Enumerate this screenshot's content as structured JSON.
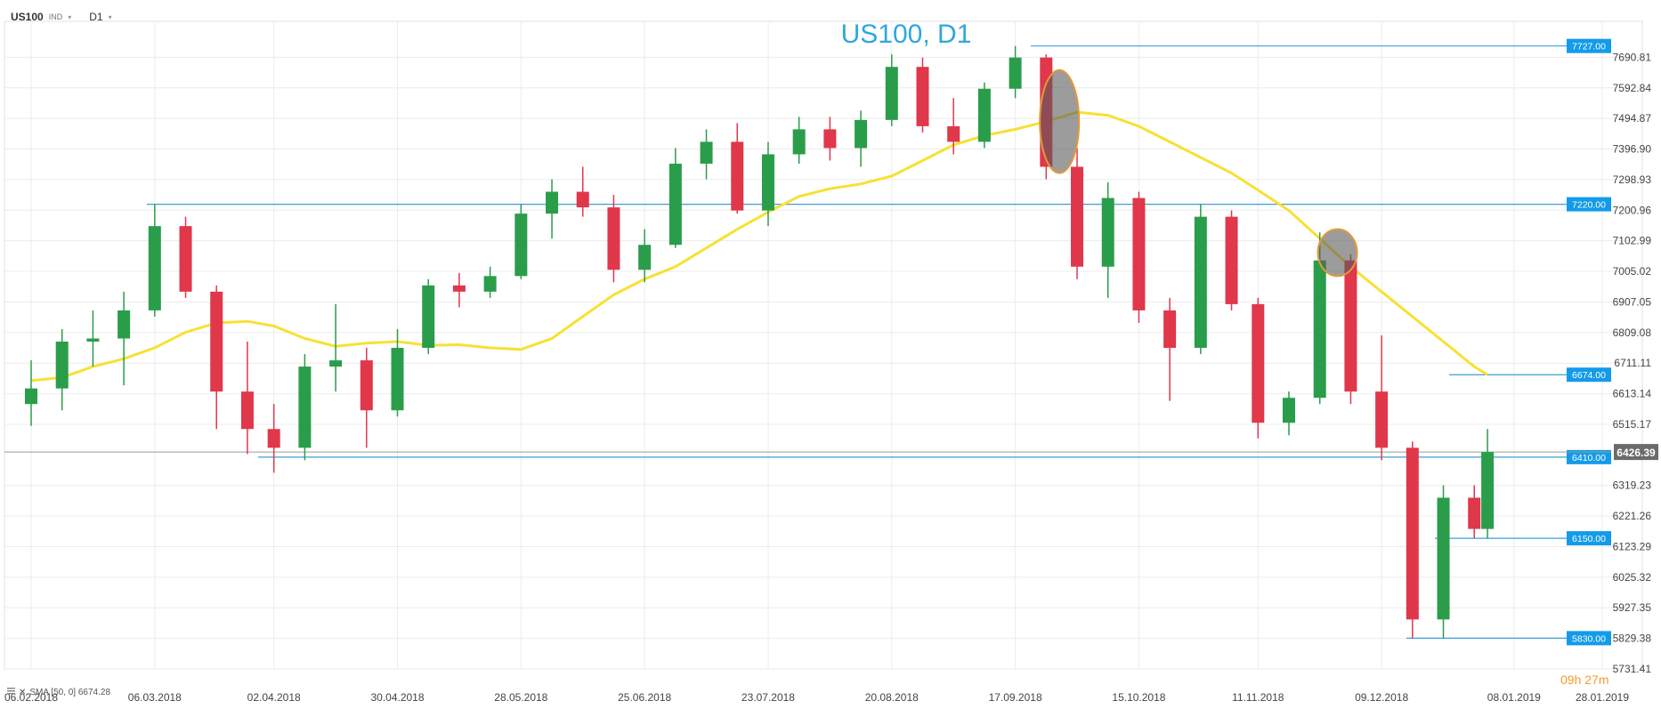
{
  "header": {
    "symbol": "US100",
    "symbol_type": "IND",
    "timeframe": "D1",
    "caret": "▾"
  },
  "indicator": {
    "label": "SMA [50, 0] 6674.28"
  },
  "countdown": {
    "hours": "09",
    "h": "h",
    "minutes": "27",
    "m": "m"
  },
  "colors": {
    "up": "#2a9d4a",
    "down": "#e0374b",
    "sma": "#f7e133",
    "hline": "#3c9dd9",
    "label_bg": "#139bea",
    "title": "#2ea7e0",
    "price_tag": "#6b6b6b",
    "grid": "#ececec"
  },
  "chart_data": {
    "type": "candlestick",
    "title": "US100, D1",
    "price_axis": {
      "ticks": [
        "7690.81",
        "7592.84",
        "7494.87",
        "7396.90",
        "7298.93",
        "7200.96",
        "7102.99",
        "7005.02",
        "6907.05",
        "6809.08",
        "6711.11",
        "6613.14",
        "6515.17",
        "6319.23",
        "6221.26",
        "6123.29",
        "6025.32",
        "5927.35",
        "5829.38",
        "5731.41"
      ],
      "ylim": [
        5731.41,
        7788.78
      ]
    },
    "date_axis": {
      "ticks": [
        "06.02.2018",
        "06.03.2018",
        "02.04.2018",
        "30.04.2018",
        "28.05.2018",
        "25.06.2018",
        "23.07.2018",
        "20.08.2018",
        "17.09.2018",
        "15.10.2018",
        "11.11.2018",
        "09.12.2018",
        "08.01.2019",
        "28.01.2019"
      ]
    },
    "levels": [
      {
        "label": "7727.00",
        "value": 7727.0
      },
      {
        "label": "7220.00",
        "value": 7220.0
      },
      {
        "label": "6674.00",
        "value": 6674.0
      },
      {
        "label": "6410.00",
        "value": 6410.0
      },
      {
        "label": "6150.00",
        "value": 6150.0
      },
      {
        "label": "5830.00",
        "value": 5830.0
      }
    ],
    "current_price": {
      "label": "6426.39",
      "value": 6426.39
    },
    "highlights": [
      {
        "date": "27.09.2018",
        "low": 7320,
        "high": 7650
      },
      {
        "date": "29.11.2018",
        "low": 6990,
        "high": 7140
      }
    ],
    "sma": {
      "name": "SMA [50, 0]",
      "points": [
        [
          "06.02.2018",
          6655
        ],
        [
          "13.02.2018",
          6665
        ],
        [
          "20.02.2018",
          6700
        ],
        [
          "27.02.2018",
          6725
        ],
        [
          "06.03.2018",
          6760
        ],
        [
          "13.03.2018",
          6810
        ],
        [
          "20.03.2018",
          6840
        ],
        [
          "27.03.2018",
          6845
        ],
        [
          "02.04.2018",
          6830
        ],
        [
          "09.04.2018",
          6790
        ],
        [
          "16.04.2018",
          6765
        ],
        [
          "23.04.2018",
          6775
        ],
        [
          "30.04.2018",
          6780
        ],
        [
          "07.05.2018",
          6768
        ],
        [
          "14.05.2018",
          6770
        ],
        [
          "21.05.2018",
          6760
        ],
        [
          "28.05.2018",
          6755
        ],
        [
          "04.06.2018",
          6790
        ],
        [
          "11.06.2018",
          6860
        ],
        [
          "18.06.2018",
          6930
        ],
        [
          "25.06.2018",
          6980
        ],
        [
          "02.07.2018",
          7020
        ],
        [
          "09.07.2018",
          7080
        ],
        [
          "16.07.2018",
          7140
        ],
        [
          "23.07.2018",
          7195
        ],
        [
          "30.07.2018",
          7245
        ],
        [
          "06.08.2018",
          7270
        ],
        [
          "13.08.2018",
          7285
        ],
        [
          "20.08.2018",
          7310
        ],
        [
          "27.08.2018",
          7360
        ],
        [
          "03.09.2018",
          7410
        ],
        [
          "10.09.2018",
          7440
        ],
        [
          "17.09.2018",
          7460
        ],
        [
          "24.09.2018",
          7485
        ],
        [
          "01.10.2018",
          7515
        ],
        [
          "08.10.2018",
          7505
        ],
        [
          "15.10.2018",
          7470
        ],
        [
          "22.10.2018",
          7420
        ],
        [
          "29.10.2018",
          7370
        ],
        [
          "05.11.2018",
          7320
        ],
        [
          "11.11.2018",
          7265
        ],
        [
          "18.11.2018",
          7200
        ],
        [
          "25.11.2018",
          7110
        ],
        [
          "02.12.2018",
          7020
        ],
        [
          "09.12.2018",
          6940
        ],
        [
          "16.12.2018",
          6860
        ],
        [
          "23.12.2018",
          6780
        ],
        [
          "30.12.2018",
          6700
        ],
        [
          "02.01.2019",
          6674
        ]
      ]
    },
    "candles": [
      [
        "06.02.2018",
        6580,
        6720,
        6510,
        6630
      ],
      [
        "13.02.2018",
        6630,
        6820,
        6560,
        6780
      ],
      [
        "20.02.2018",
        6780,
        6880,
        6700,
        6790
      ],
      [
        "27.02.2018",
        6790,
        6940,
        6640,
        6880
      ],
      [
        "06.03.2018",
        6880,
        7220,
        6860,
        7150
      ],
      [
        "13.03.2018",
        7150,
        7180,
        6920,
        6940
      ],
      [
        "20.03.2018",
        6940,
        6960,
        6500,
        6620
      ],
      [
        "27.03.2018",
        6620,
        6780,
        6420,
        6500
      ],
      [
        "02.04.2018",
        6500,
        6580,
        6360,
        6440
      ],
      [
        "09.04.2018",
        6440,
        6740,
        6400,
        6700
      ],
      [
        "16.04.2018",
        6700,
        6900,
        6620,
        6720
      ],
      [
        "23.04.2018",
        6720,
        6760,
        6440,
        6560
      ],
      [
        "30.04.2018",
        6560,
        6820,
        6540,
        6760
      ],
      [
        "07.05.2018",
        6760,
        6980,
        6740,
        6960
      ],
      [
        "14.05.2018",
        6960,
        7000,
        6890,
        6940
      ],
      [
        "21.05.2018",
        6940,
        7020,
        6920,
        6990
      ],
      [
        "28.05.2018",
        6990,
        7220,
        6980,
        7190
      ],
      [
        "04.06.2018",
        7190,
        7300,
        7110,
        7260
      ],
      [
        "11.06.2018",
        7260,
        7340,
        7180,
        7210
      ],
      [
        "18.06.2018",
        7210,
        7250,
        6970,
        7010
      ],
      [
        "25.06.2018",
        7010,
        7140,
        6970,
        7090
      ],
      [
        "02.07.2018",
        7090,
        7400,
        7080,
        7350
      ],
      [
        "09.07.2018",
        7350,
        7460,
        7300,
        7420
      ],
      [
        "16.07.2018",
        7420,
        7480,
        7190,
        7200
      ],
      [
        "23.07.2018",
        7200,
        7420,
        7150,
        7380
      ],
      [
        "30.07.2018",
        7380,
        7500,
        7350,
        7460
      ],
      [
        "06.08.2018",
        7460,
        7500,
        7360,
        7400
      ],
      [
        "13.08.2018",
        7400,
        7520,
        7340,
        7490
      ],
      [
        "20.08.2018",
        7490,
        7700,
        7470,
        7660
      ],
      [
        "27.08.2018",
        7660,
        7690,
        7450,
        7470
      ],
      [
        "03.09.2018",
        7470,
        7560,
        7380,
        7420
      ],
      [
        "10.09.2018",
        7420,
        7610,
        7400,
        7590
      ],
      [
        "17.09.2018",
        7590,
        7727,
        7560,
        7690
      ],
      [
        "24.09.2018",
        7690,
        7700,
        7300,
        7340
      ],
      [
        "01.10.2018",
        7340,
        7400,
        6980,
        7020
      ],
      [
        "08.10.2018",
        7020,
        7290,
        6920,
        7240
      ],
      [
        "15.10.2018",
        7240,
        7260,
        6840,
        6880
      ],
      [
        "22.10.2018",
        6880,
        6920,
        6590,
        6760
      ],
      [
        "29.10.2018",
        6760,
        7220,
        6740,
        7180
      ],
      [
        "05.11.2018",
        7180,
        7200,
        6880,
        6900
      ],
      [
        "11.11.2018",
        6900,
        6920,
        6470,
        6520
      ],
      [
        "18.11.2018",
        6520,
        6620,
        6480,
        6600
      ],
      [
        "25.11.2018",
        6600,
        7130,
        6580,
        7040
      ],
      [
        "02.12.2018",
        7040,
        7060,
        6580,
        6620
      ],
      [
        "09.12.2018",
        6620,
        6800,
        6400,
        6440
      ],
      [
        "16.12.2018",
        6440,
        6460,
        5830,
        5890
      ],
      [
        "23.12.2018",
        5890,
        6320,
        5830,
        6280
      ],
      [
        "30.12.2018",
        6280,
        6320,
        6150,
        6180
      ],
      [
        "02.01.2019",
        6180,
        6500,
        6150,
        6426
      ]
    ]
  }
}
